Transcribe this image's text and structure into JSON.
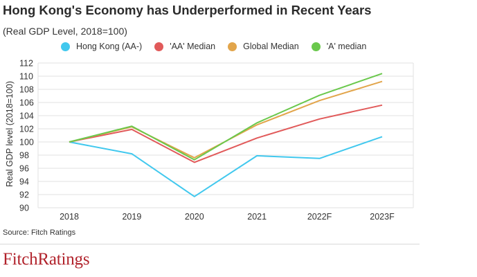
{
  "header": {
    "title": "Hong Kong's Economy has Underperformed in Recent Years",
    "subtitle": "(Real GDP Level, 2018=100)"
  },
  "footer": {
    "source": "Source: Fitch Ratings",
    "brand": "FitchRatings"
  },
  "chart_data": {
    "type": "line",
    "x": [
      "2018",
      "2019",
      "2020",
      "2021",
      "2022F",
      "2023F"
    ],
    "ylabel": "Real GDP level (2018=100)",
    "xlabel": "",
    "ylim": [
      90,
      112
    ],
    "yticks": [
      90,
      92,
      94,
      96,
      98,
      100,
      102,
      104,
      106,
      108,
      110,
      112
    ],
    "grid": "horizontal",
    "legend_position": "top",
    "series": [
      {
        "name": "Hong Kong (AA-)",
        "color": "#41c8ee",
        "values": [
          100.0,
          98.2,
          91.7,
          97.9,
          97.5,
          100.8
        ]
      },
      {
        "name": "'AA' Median",
        "color": "#e15a5a",
        "values": [
          100.0,
          101.9,
          96.9,
          100.6,
          103.5,
          105.6
        ]
      },
      {
        "name": "Global Median",
        "color": "#e2a54b",
        "values": [
          100.0,
          102.3,
          97.6,
          102.6,
          106.3,
          109.2
        ]
      },
      {
        "name": "'A' median",
        "color": "#6ac84c",
        "values": [
          100.0,
          102.4,
          97.3,
          102.9,
          107.1,
          110.4
        ]
      }
    ]
  }
}
